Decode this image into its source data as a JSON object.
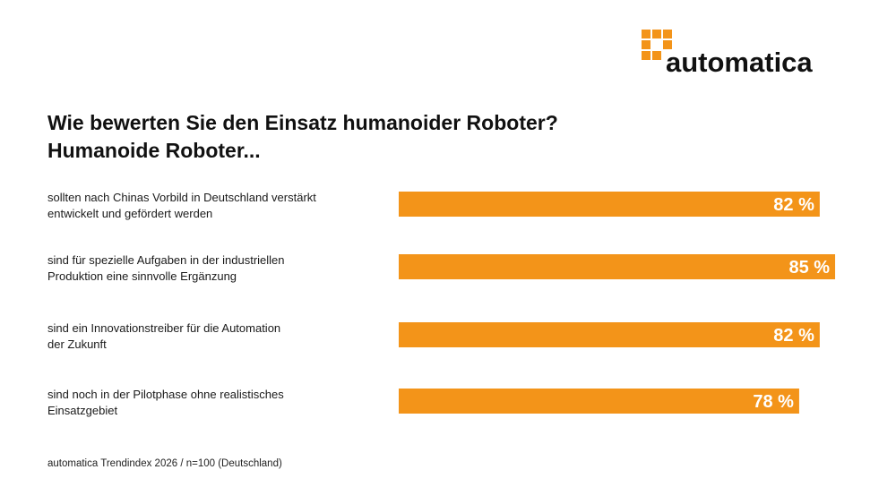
{
  "logo": "automatica",
  "chart_data": {
    "type": "bar",
    "orientation": "horizontal",
    "title": "Wie bewerten Sie den Einsatz humanoider Roboter?",
    "subtitle": "Humanoide Roboter...",
    "categories": [
      "sollten nach Chinas Vorbild in Deutschland verstärkt\nentwickelt und gefördert werden",
      "sind für spezielle Aufgaben in der industriellen\nProduktion eine sinnvolle Ergänzung",
      "sind ein Innovationstreiber für die Automation\nder Zukunft",
      "sind noch in der Pilotphase ohne realistisches\nEinsatzgebiet"
    ],
    "values": [
      82,
      85,
      82,
      78
    ],
    "value_labels": [
      "82 %",
      "85 %",
      "82 %",
      "78 %"
    ],
    "color": "#f39419",
    "source": "automatica Trendindex 2026 / n=100 (Deutschland)"
  }
}
